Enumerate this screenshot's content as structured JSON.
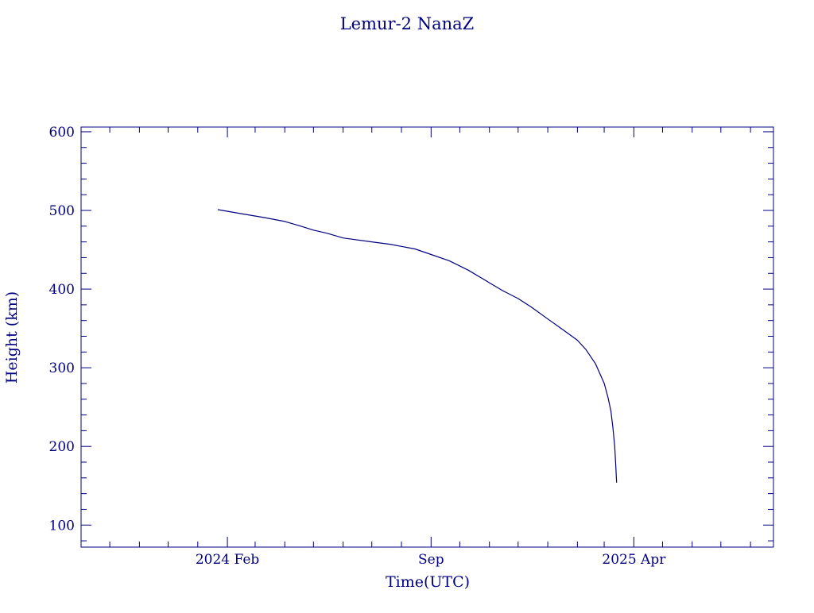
{
  "chart_data": {
    "type": "line",
    "title": "Lemur-2 NanaZ",
    "xlabel": "Time(UTC)",
    "ylabel": "Height (km)",
    "color": "#000080",
    "x_axis": {
      "scale": "time",
      "range": [
        "2023-09-01",
        "2025-08-25"
      ],
      "tick_labels": [
        {
          "date": "2024-02-01",
          "label": "2024 Feb"
        },
        {
          "date": "2024-09-01",
          "label": "Sep"
        },
        {
          "date": "2025-04-01",
          "label": "2025 Apr"
        }
      ]
    },
    "y_axis": {
      "range": [
        72,
        606
      ],
      "ticks": [
        100,
        200,
        300,
        400,
        500,
        600
      ]
    },
    "grid": false,
    "series": [
      {
        "x": [
          "2024-01-22",
          "2024-02-15",
          "2024-03-10",
          "2024-04-01",
          "2024-04-15",
          "2024-05-01",
          "2024-05-15",
          "2024-06-01",
          "2024-07-01",
          "2024-07-20",
          "2024-08-15",
          "2024-09-01",
          "2024-09-20",
          "2024-10-10",
          "2024-11-01",
          "2024-11-15",
          "2024-12-01",
          "2024-12-15",
          "2025-01-01",
          "2025-01-15",
          "2025-02-01",
          "2025-02-10",
          "2025-02-20",
          "2025-03-01",
          "2025-03-05",
          "2025-03-08",
          "2025-03-10",
          "2025-03-12",
          "2025-03-13",
          "2025-03-14"
        ],
        "y": [
          501,
          496,
          491,
          486,
          481,
          475,
          471,
          465,
          460,
          457,
          451,
          444,
          436,
          424,
          408,
          398,
          388,
          377,
          362,
          350,
          335,
          323,
          305,
          280,
          262,
          245,
          225,
          200,
          178,
          154
        ]
      }
    ]
  }
}
